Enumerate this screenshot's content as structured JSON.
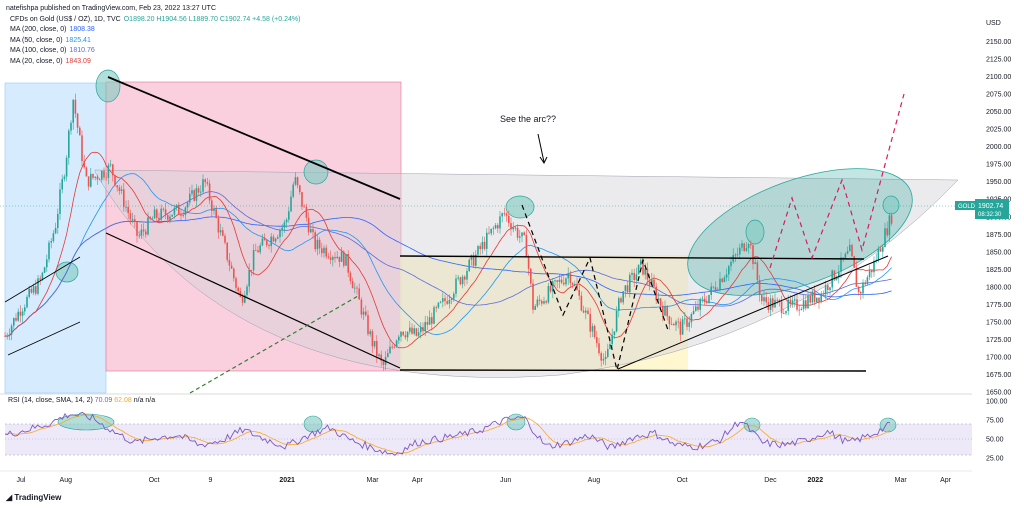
{
  "header": {
    "published": "natefishpa published on TradingView.com, Feb 23, 2022 13:27 UTC"
  },
  "legend": {
    "symbol": "CFDs on Gold (US$ / OZ), 1D, TVC",
    "ohlc": "O1898.20 H1904.56 L1889.70 C1902.74 +4.58 (+0.24%)",
    "ma": [
      {
        "label": "MA (200, close, 0)",
        "value": "1808.38",
        "color": "#2962ff"
      },
      {
        "label": "MA (50, close, 0)",
        "value": "1825.41",
        "color": "#2196f3"
      },
      {
        "label": "MA (100, close, 0)",
        "value": "1810.76",
        "color": "#5d6bd6"
      },
      {
        "label": "MA (20, close, 0)",
        "value": "1843.09",
        "color": "#e53935"
      }
    ]
  },
  "rsi_legend": {
    "label": "RSI (14, close, SMA, 14, 2)",
    "v1": "70.09",
    "v2": "62.08",
    "rest": "n/a n/a"
  },
  "brand": "TradingView",
  "annotation": "See the arc??",
  "price_tag": {
    "symbol": "GOLD",
    "price": "1902.74",
    "time": "08:32:30"
  },
  "chart_data": [
    {
      "type": "candlestick",
      "title": "CFDs on Gold (US$ / OZ), 1D, TVC",
      "y_axis_label": "USD",
      "ylim": [
        1650,
        2175
      ],
      "y_ticks": [
        "2150.00",
        "2125.00",
        "2100.00",
        "2075.00",
        "2050.00",
        "2025.00",
        "2000.00",
        "1975.00",
        "1950.00",
        "1925.00",
        "1900.00",
        "1875.00",
        "1850.00",
        "1825.00",
        "1800.00",
        "1775.00",
        "1750.00",
        "1725.00",
        "1700.00",
        "1675.00",
        "1650.00"
      ],
      "y_top_label": "USD",
      "x_ticks": [
        "Jul",
        "Aug",
        "Oct",
        "9",
        "2021",
        "Mar",
        "Apr",
        "Jun",
        "Aug",
        "Oct",
        "Dec",
        "2022",
        "Mar",
        "Apr"
      ],
      "price_path": [
        [
          "2020-06-20",
          1730
        ],
        [
          "2020-07-01",
          1770
        ],
        [
          "2020-07-15",
          1810
        ],
        [
          "2020-07-25",
          1890
        ],
        [
          "2020-08-01",
          1980
        ],
        [
          "2020-08-06",
          2070
        ],
        [
          "2020-08-15",
          1950
        ],
        [
          "2020-09-01",
          1970
        ],
        [
          "2020-09-20",
          1870
        ],
        [
          "2020-10-01",
          1900
        ],
        [
          "2020-10-20",
          1910
        ],
        [
          "2020-11-05",
          1950
        ],
        [
          "2020-11-30",
          1780
        ],
        [
          "2020-12-10",
          1850
        ],
        [
          "2020-12-31",
          1890
        ],
        [
          "2021-01-06",
          1955
        ],
        [
          "2021-01-20",
          1860
        ],
        [
          "2021-02-10",
          1840
        ],
        [
          "2021-03-01",
          1720
        ],
        [
          "2021-03-08",
          1685
        ],
        [
          "2021-03-20",
          1740
        ],
        [
          "2021-04-01",
          1730
        ],
        [
          "2021-04-20",
          1780
        ],
        [
          "2021-05-10",
          1840
        ],
        [
          "2021-05-31",
          1905
        ],
        [
          "2021-06-15",
          1860
        ],
        [
          "2021-06-20",
          1770
        ],
        [
          "2021-07-15",
          1820
        ],
        [
          "2021-08-09",
          1690
        ],
        [
          "2021-08-20",
          1790
        ],
        [
          "2021-09-03",
          1830
        ],
        [
          "2021-09-20",
          1760
        ],
        [
          "2021-09-30",
          1740
        ],
        [
          "2021-10-20",
          1790
        ],
        [
          "2021-11-16",
          1870
        ],
        [
          "2021-11-25",
          1780
        ],
        [
          "2021-12-15",
          1770
        ],
        [
          "2022-01-05",
          1790
        ],
        [
          "2022-01-25",
          1850
        ],
        [
          "2022-01-31",
          1790
        ],
        [
          "2022-02-10",
          1830
        ],
        [
          "2022-02-23",
          1902.74
        ]
      ]
    },
    {
      "type": "line",
      "title": "RSI (14, close, SMA, 14, 2)",
      "ylim": [
        15,
        110
      ],
      "y_ticks": [
        "100.00",
        "75.00",
        "50.00",
        "25.00"
      ],
      "bands": [
        70,
        30
      ],
      "values": [
        55,
        62,
        70,
        83,
        78,
        60,
        45,
        52,
        55,
        42,
        48,
        62,
        50,
        40,
        55,
        65,
        48,
        38,
        30,
        45,
        50,
        55,
        62,
        74,
        78,
        40,
        45,
        55,
        38,
        52,
        58,
        42,
        40,
        48,
        75,
        45,
        42,
        48,
        60,
        45,
        55,
        70
      ]
    }
  ]
}
